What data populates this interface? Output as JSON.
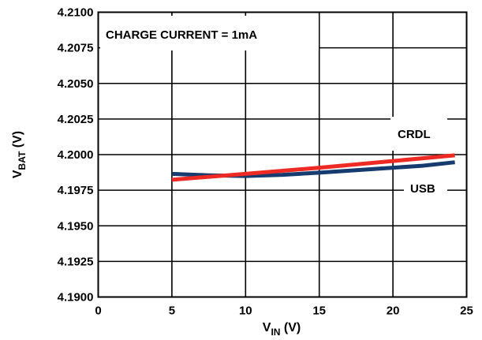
{
  "chart_data": {
    "type": "line",
    "title": "",
    "annotation": "CHARGE CURRENT = 1mA",
    "xlabel": {
      "main": "V",
      "sub": "IN",
      "unit": " (V)"
    },
    "ylabel": {
      "main": "V",
      "sub": "BAT",
      "unit": " (V)"
    },
    "xlim": [
      0,
      25
    ],
    "ylim": [
      4.19,
      4.21
    ],
    "x_ticks": [
      0,
      5,
      10,
      15,
      20,
      25
    ],
    "x_tick_labels": [
      "0",
      "5",
      "10",
      "15",
      "20",
      "25"
    ],
    "y_ticks": [
      4.19,
      4.1925,
      4.195,
      4.1975,
      4.2,
      4.2025,
      4.205,
      4.2075,
      4.21
    ],
    "y_tick_labels": [
      "4.1900",
      "4.1925",
      "4.1950",
      "4.1975",
      "4.2000",
      "4.2025",
      "4.2050",
      "4.2075",
      "4.2100"
    ],
    "grid": true,
    "series": [
      {
        "name": "CRDL",
        "color": "#ee2a24",
        "x": [
          5,
          10,
          15,
          20,
          24.2
        ],
        "y": [
          4.19823,
          4.19865,
          4.19908,
          4.19955,
          4.19995
        ]
      },
      {
        "name": "USB",
        "color": "#163b6e",
        "x": [
          5,
          7.5,
          10,
          12.5,
          15,
          17.5,
          20,
          22,
          24.2
        ],
        "y": [
          4.19865,
          4.19855,
          4.1985,
          4.19858,
          4.19873,
          4.19891,
          4.19908,
          4.19922,
          4.19946
        ]
      }
    ]
  }
}
